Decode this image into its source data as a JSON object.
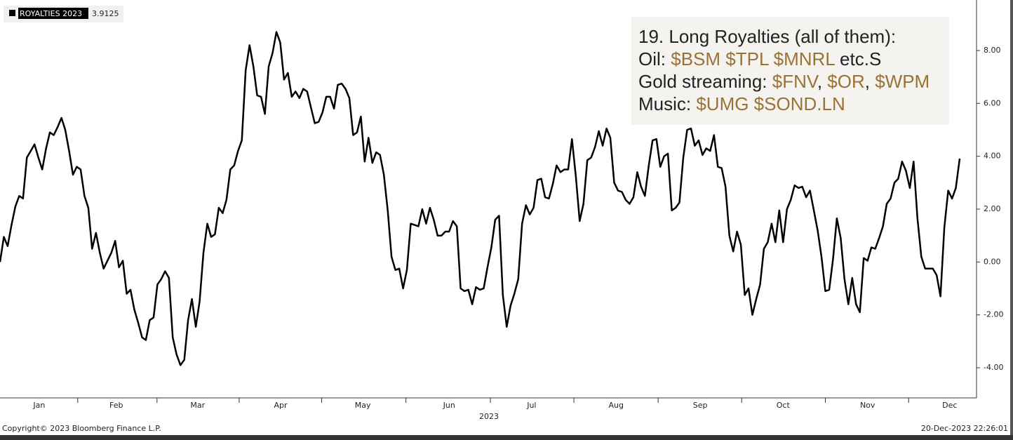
{
  "chart_data": {
    "type": "line",
    "legend_name": "ROYALTIES 2023",
    "series": [
      {
        "name": "ROYALTIES 2023",
        "color": "#000000",
        "values": [
          0,
          0.95,
          0.6,
          1.4,
          2.1,
          2.5,
          2.4,
          3.95,
          4.2,
          4.45,
          3.95,
          3.5,
          4.3,
          4.9,
          4.8,
          5.1,
          5.45,
          5.0,
          4.2,
          3.3,
          3.6,
          3.5,
          2.5,
          2.05,
          0.5,
          1.1,
          0.35,
          -0.25,
          0.05,
          0.35,
          0.8,
          -0.2,
          0.05,
          -1.2,
          -1.05,
          -1.8,
          -2.3,
          -2.85,
          -2.95,
          -2.2,
          -2.1,
          -0.85,
          -0.65,
          -0.35,
          -0.6,
          -2.85,
          -3.5,
          -3.9,
          -3.7,
          -2.2,
          -1.4,
          -2.45,
          -1.5,
          0.35,
          1.45,
          0.95,
          1.05,
          2.05,
          1.85,
          2.35,
          3.5,
          3.65,
          4.2,
          4.6,
          7.25,
          8.2,
          7.4,
          6.3,
          6.25,
          5.6,
          7.4,
          7.9,
          8.7,
          8.3,
          6.9,
          7.15,
          6.25,
          6.45,
          6.2,
          6.55,
          6.45,
          5.85,
          5.25,
          5.3,
          5.65,
          6.25,
          6.25,
          5.8,
          6.7,
          6.75,
          6.55,
          6.2,
          4.8,
          4.9,
          5.5,
          3.8,
          4.7,
          3.75,
          4.15,
          4.05,
          3.3,
          1.95,
          0.2,
          -0.3,
          -0.25,
          -1.0,
          -0.3,
          1.45,
          1.4,
          1.35,
          2.0,
          1.45,
          2.05,
          1.6,
          1.0,
          1.0,
          1.15,
          1.15,
          1.55,
          1.35,
          -1.0,
          -1.1,
          -1.05,
          -1.6,
          -0.95,
          -1.05,
          -1.0,
          -0.2,
          0.55,
          1.6,
          1.75,
          -1.25,
          -2.45,
          -1.65,
          -1.2,
          -0.65,
          1.45,
          2.15,
          1.8,
          2.05,
          3.1,
          3.15,
          2.45,
          2.4,
          2.95,
          3.65,
          3.4,
          3.5,
          3.5,
          4.65,
          3.25,
          1.55,
          2.2,
          3.85,
          3.95,
          4.35,
          4.95,
          4.4,
          5.05,
          4.7,
          3.0,
          2.7,
          2.65,
          2.35,
          2.2,
          2.45,
          3.4,
          2.85,
          2.5,
          3.65,
          4.6,
          4.65,
          3.6,
          4.0,
          4.1,
          1.95,
          2.05,
          2.25,
          3.95,
          5.0,
          5.05,
          4.4,
          4.6,
          4.05,
          4.3,
          4.2,
          4.8,
          3.6,
          3.55,
          2.85,
          1.0,
          0.4,
          1.15,
          0.65,
          -1.25,
          -1.0,
          -2.0,
          -1.4,
          -0.85,
          0.5,
          0.75,
          1.45,
          0.75,
          1.95,
          0.75,
          2.0,
          2.35,
          2.9,
          2.8,
          2.85,
          2.45,
          2.7,
          1.95,
          1.2,
          0.2,
          -1.1,
          -1.05,
          0.1,
          1.65,
          0.9,
          -0.65,
          -1.6,
          -0.6,
          -1.6,
          -1.9,
          0.15,
          0.05,
          0.55,
          0.5,
          0.9,
          1.35,
          2.2,
          2.4,
          3.0,
          3.15,
          3.8,
          3.45,
          2.8,
          3.8,
          1.65,
          0.2,
          -0.25,
          -0.25,
          -0.25,
          -0.5,
          -1.3,
          1.3,
          2.7,
          2.4,
          2.8,
          3.9125
        ]
      }
    ],
    "xlim": [
      0,
      250
    ],
    "xticks": [
      {
        "value": 10.2,
        "label": "Jan"
      },
      {
        "value": 30.3,
        "label": "Feb"
      },
      {
        "value": 51.5,
        "label": "Mar"
      },
      {
        "value": 73.1,
        "label": "Apr"
      },
      {
        "value": 94.5,
        "label": "May"
      },
      {
        "value": 117,
        "label": "Jun"
      },
      {
        "value": 138.5,
        "label": "Jul"
      },
      {
        "value": 160.5,
        "label": "Aug"
      },
      {
        "value": 182.4,
        "label": "Sep"
      },
      {
        "value": 204,
        "label": "Oct"
      },
      {
        "value": 226,
        "label": "Nov"
      },
      {
        "value": 247.4,
        "label": "Dec"
      }
    ],
    "xlabel": "2023",
    "ylim": [
      -5.14,
      9.91
    ],
    "yticks": [
      {
        "value": 8,
        "label": "8.00"
      },
      {
        "value": 6,
        "label": "6.00"
      },
      {
        "value": 4,
        "label": "4.00"
      },
      {
        "value": 2,
        "label": "2.00"
      },
      {
        "value": 0,
        "label": "0.00"
      },
      {
        "value": -2,
        "label": "-2.00"
      },
      {
        "value": -4,
        "label": "-4.00"
      }
    ],
    "annotation": [
      [
        {
          "text": "19. Long Royalties (all of them):",
          "color": "#222222"
        }
      ],
      [
        {
          "text": "Oil: ",
          "color": "#222222"
        },
        {
          "text": "$BSM $TPL $MNRL",
          "color": "#9a7236"
        },
        {
          "text": " etc.S",
          "color": "#222222"
        }
      ],
      [
        {
          "text": "Gold streaming: ",
          "color": "#222222"
        },
        {
          "text": "$FNV",
          "color": "#9a7236"
        },
        {
          "text": ", ",
          "color": "#222222"
        },
        {
          "text": "$OR",
          "color": "#9a7236"
        },
        {
          "text": ", ",
          "color": "#222222"
        },
        {
          "text": "$WPM",
          "color": "#9a7236"
        }
      ],
      [
        {
          "text": "Music: ",
          "color": "#222222"
        },
        {
          "text": "$UMG $SOND.LN",
          "color": "#9a7236"
        }
      ]
    ],
    "copyright": "Copyright© 2023 Bloomberg Finance L.P.",
    "timestamp": "20-Dec-2023 22:26:01"
  }
}
